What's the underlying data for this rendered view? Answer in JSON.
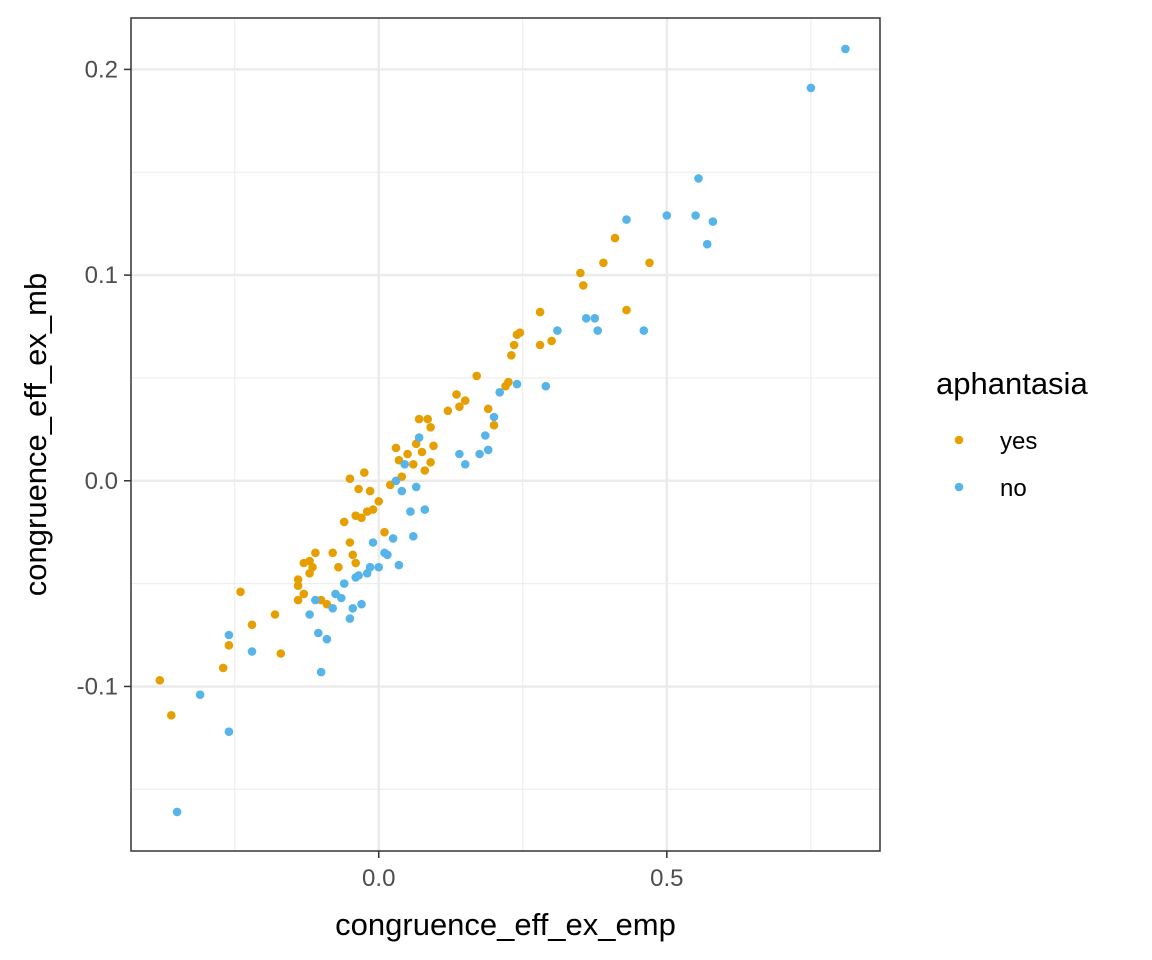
{
  "chart_data": {
    "type": "scatter",
    "xlabel": "congruence_eff_ex_emp",
    "ylabel": "congruence_eff_ex_mb",
    "xlim": [
      -0.43,
      0.87
    ],
    "ylim": [
      -0.18,
      0.225
    ],
    "x_ticks": [
      0.0,
      0.5
    ],
    "x_tick_labels": [
      "0.0",
      "0.5"
    ],
    "y_ticks": [
      -0.1,
      0.0,
      0.1,
      0.2
    ],
    "y_tick_labels": [
      "-0.1",
      "0.0",
      "0.1",
      "0.2"
    ],
    "grid": true,
    "legend": {
      "title": "aphantasia",
      "position": "right",
      "entries": [
        "yes",
        "no"
      ]
    },
    "colors": {
      "yes": "#E69F00",
      "no": "#56B4E9"
    },
    "series": [
      {
        "name": "yes",
        "points": [
          [
            -0.38,
            -0.097
          ],
          [
            -0.36,
            -0.114
          ],
          [
            -0.27,
            -0.091
          ],
          [
            -0.26,
            -0.08
          ],
          [
            -0.24,
            -0.054
          ],
          [
            -0.22,
            -0.07
          ],
          [
            -0.18,
            -0.065
          ],
          [
            -0.17,
            -0.084
          ],
          [
            -0.14,
            -0.048
          ],
          [
            -0.14,
            -0.051
          ],
          [
            -0.14,
            -0.058
          ],
          [
            -0.13,
            -0.04
          ],
          [
            -0.13,
            -0.055
          ],
          [
            -0.12,
            -0.039
          ],
          [
            -0.12,
            -0.045
          ],
          [
            -0.115,
            -0.042
          ],
          [
            -0.11,
            -0.035
          ],
          [
            -0.1,
            -0.058
          ],
          [
            -0.09,
            -0.06
          ],
          [
            -0.08,
            -0.035
          ],
          [
            -0.07,
            -0.042
          ],
          [
            -0.06,
            -0.02
          ],
          [
            -0.05,
            0.001
          ],
          [
            -0.05,
            -0.03
          ],
          [
            -0.045,
            -0.036
          ],
          [
            -0.04,
            -0.017
          ],
          [
            -0.04,
            -0.04
          ],
          [
            -0.035,
            -0.004
          ],
          [
            -0.03,
            -0.018
          ],
          [
            -0.025,
            0.004
          ],
          [
            -0.02,
            -0.015
          ],
          [
            -0.015,
            -0.005
          ],
          [
            -0.01,
            -0.014
          ],
          [
            0.0,
            -0.01
          ],
          [
            0.01,
            -0.025
          ],
          [
            0.02,
            -0.002
          ],
          [
            0.03,
            0.016
          ],
          [
            0.035,
            0.01
          ],
          [
            0.04,
            0.002
          ],
          [
            0.05,
            0.013
          ],
          [
            0.06,
            0.008
          ],
          [
            0.065,
            0.018
          ],
          [
            0.07,
            0.03
          ],
          [
            0.075,
            0.014
          ],
          [
            0.08,
            0.005
          ],
          [
            0.085,
            0.03
          ],
          [
            0.09,
            0.026
          ],
          [
            0.09,
            0.009
          ],
          [
            0.095,
            0.017
          ],
          [
            0.12,
            0.034
          ],
          [
            0.135,
            0.042
          ],
          [
            0.14,
            0.036
          ],
          [
            0.15,
            0.039
          ],
          [
            0.17,
            0.051
          ],
          [
            0.19,
            0.035
          ],
          [
            0.2,
            0.027
          ],
          [
            0.22,
            0.046
          ],
          [
            0.225,
            0.048
          ],
          [
            0.23,
            0.061
          ],
          [
            0.235,
            0.066
          ],
          [
            0.24,
            0.071
          ],
          [
            0.245,
            0.072
          ],
          [
            0.28,
            0.066
          ],
          [
            0.28,
            0.082
          ],
          [
            0.3,
            0.068
          ],
          [
            0.35,
            0.101
          ],
          [
            0.355,
            0.095
          ],
          [
            0.39,
            0.106
          ],
          [
            0.41,
            0.118
          ],
          [
            0.43,
            0.083
          ],
          [
            0.47,
            0.106
          ]
        ]
      },
      {
        "name": "no",
        "points": [
          [
            -0.35,
            -0.161
          ],
          [
            -0.31,
            -0.104
          ],
          [
            -0.26,
            -0.122
          ],
          [
            -0.26,
            -0.075
          ],
          [
            -0.22,
            -0.083
          ],
          [
            -0.12,
            -0.065
          ],
          [
            -0.11,
            -0.058
          ],
          [
            -0.105,
            -0.074
          ],
          [
            -0.1,
            -0.093
          ],
          [
            -0.09,
            -0.077
          ],
          [
            -0.08,
            -0.062
          ],
          [
            -0.075,
            -0.055
          ],
          [
            -0.065,
            -0.057
          ],
          [
            -0.06,
            -0.05
          ],
          [
            -0.05,
            -0.067
          ],
          [
            -0.045,
            -0.062
          ],
          [
            -0.04,
            -0.047
          ],
          [
            -0.035,
            -0.046
          ],
          [
            -0.03,
            -0.06
          ],
          [
            -0.02,
            -0.045
          ],
          [
            -0.015,
            -0.042
          ],
          [
            -0.01,
            -0.03
          ],
          [
            0.0,
            -0.042
          ],
          [
            0.01,
            -0.035
          ],
          [
            0.015,
            -0.036
          ],
          [
            0.025,
            -0.028
          ],
          [
            0.03,
            0.0
          ],
          [
            0.035,
            -0.041
          ],
          [
            0.04,
            -0.005
          ],
          [
            0.045,
            0.008
          ],
          [
            0.055,
            -0.015
          ],
          [
            0.06,
            -0.027
          ],
          [
            0.065,
            -0.003
          ],
          [
            0.07,
            0.021
          ],
          [
            0.08,
            -0.014
          ],
          [
            0.14,
            0.013
          ],
          [
            0.15,
            0.008
          ],
          [
            0.175,
            0.013
          ],
          [
            0.185,
            0.022
          ],
          [
            0.19,
            0.015
          ],
          [
            0.2,
            0.031
          ],
          [
            0.21,
            0.043
          ],
          [
            0.24,
            0.047
          ],
          [
            0.29,
            0.046
          ],
          [
            0.31,
            0.073
          ],
          [
            0.36,
            0.079
          ],
          [
            0.375,
            0.079
          ],
          [
            0.38,
            0.073
          ],
          [
            0.43,
            0.127
          ],
          [
            0.46,
            0.073
          ],
          [
            0.5,
            0.129
          ],
          [
            0.55,
            0.129
          ],
          [
            0.555,
            0.147
          ],
          [
            0.57,
            0.115
          ],
          [
            0.58,
            0.126
          ],
          [
            0.75,
            0.191
          ],
          [
            0.81,
            0.21
          ]
        ]
      }
    ]
  }
}
